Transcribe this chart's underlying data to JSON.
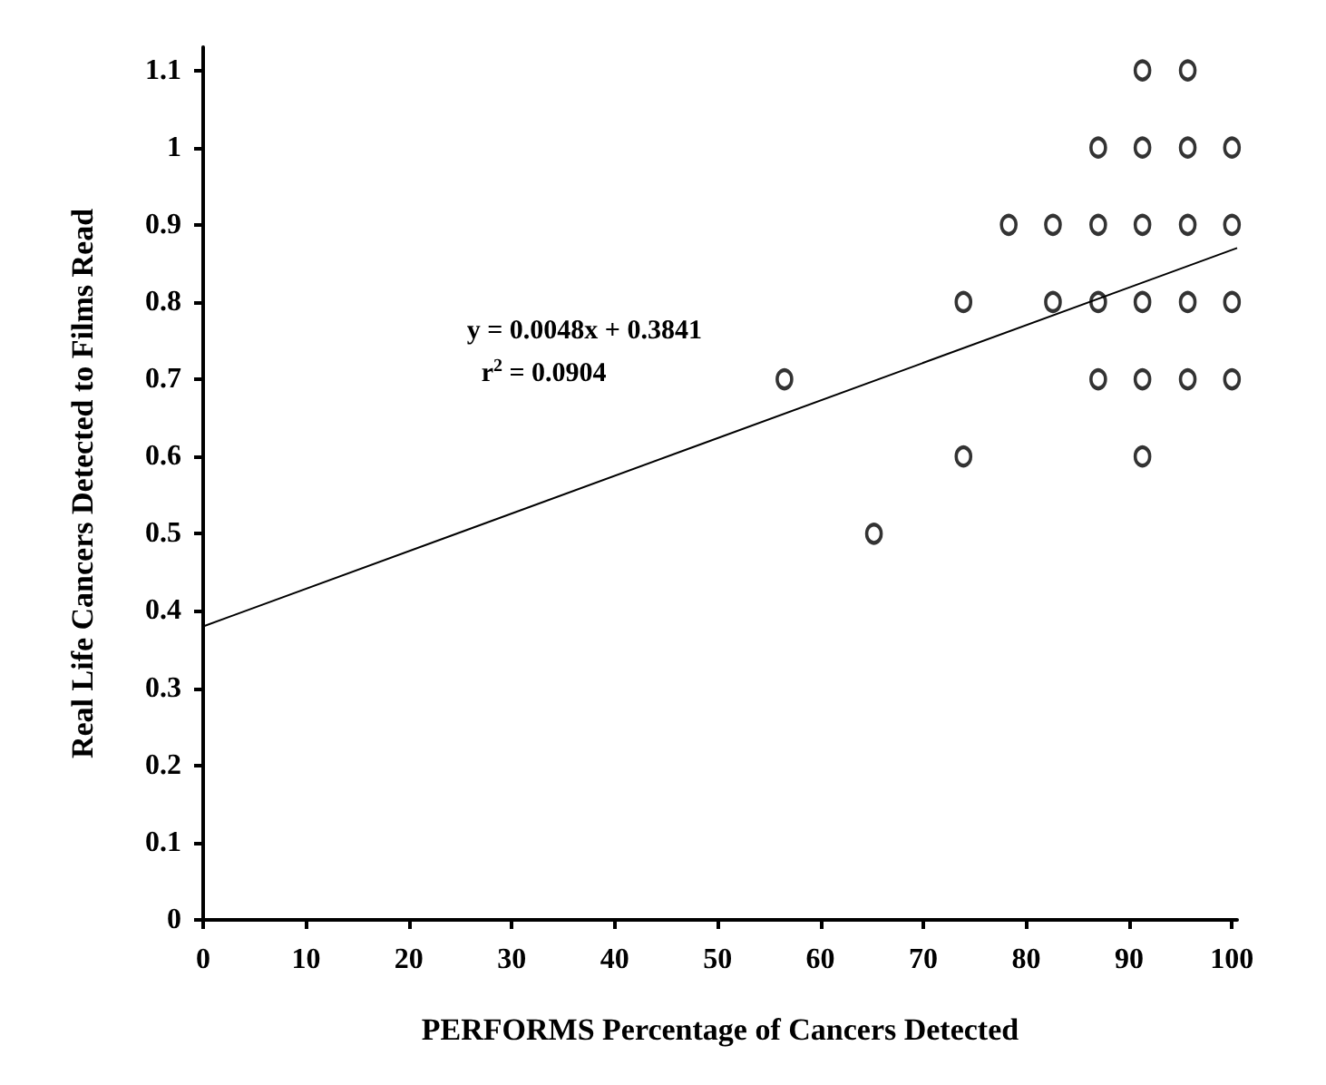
{
  "chart_data": {
    "type": "scatter",
    "xlabel": "PERFORMS Percentage of Cancers Detected",
    "ylabel": "Real Life Cancers Detected to Films Read",
    "xlim": [
      0,
      100.5
    ],
    "xticks": [
      0,
      10,
      20,
      30,
      40,
      50,
      60,
      70,
      80,
      90,
      100
    ],
    "ylim": [
      0,
      1.13
    ],
    "yticks": [
      0,
      0.1,
      0.2,
      0.3,
      0.4,
      0.5,
      0.6,
      0.7,
      0.8,
      0.9,
      1,
      1.1
    ],
    "grid": false,
    "marker": "circle",
    "annotations": [
      "y = 0.0048x + 0.3841",
      "r$^{2}$ = 0.0904"
    ],
    "series": [
      {
        "color": "#000000",
        "x": [
          56.5,
          65.2,
          73.9,
          73.9,
          78.3,
          82.6,
          82.6,
          87,
          87,
          87,
          87,
          91.3,
          91.3,
          91.3,
          91.3,
          91.3,
          91.3,
          95.7,
          95.7,
          95.7,
          95.7,
          95.7,
          100,
          100,
          100,
          100
        ],
        "values": [
          0.7,
          0.5,
          0.8,
          0.6,
          0.9,
          0.9,
          0.8,
          1,
          0.9,
          0.8,
          0.7,
          1.1,
          1,
          0.9,
          0.8,
          0.7,
          0.6,
          1.1,
          1,
          0.9,
          0.8,
          0.7,
          1,
          0.9,
          0.8,
          0.7
        ]
      },
      {
        "type": "line",
        "marker": "none",
        "line_style": "solid",
        "color": "#000000",
        "x": [
          0,
          100.5
        ],
        "values": [
          0.38,
          0.87
        ]
      }
    ]
  }
}
